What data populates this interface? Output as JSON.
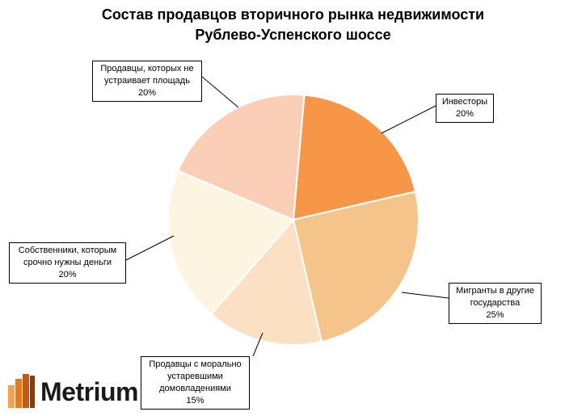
{
  "title_line1": "Состав продавцов вторичного рынка недвижимости",
  "title_line2": "Рублево-Успенского шоссе",
  "logo": {
    "text": "Metrium"
  },
  "chart_data": {
    "type": "pie",
    "title": "Состав продавцов вторичного рынка недвижимости Рублево-Успенского шоссе",
    "slices": [
      {
        "name": "Инвесторы",
        "value": 20,
        "label": "20%",
        "color": "#f79646",
        "lines": [
          "Инвесторы"
        ]
      },
      {
        "name": "Мигранты в другие государства",
        "value": 25,
        "label": "25%",
        "color": "#f5c48b",
        "lines": [
          "Мигранты в другие",
          "государства"
        ]
      },
      {
        "name": "Продавцы с морально устаревшими домовладениями",
        "value": 15,
        "label": "15%",
        "color": "#fbe0c3",
        "lines": [
          "Продавцы с морально",
          "устаревшими",
          "домовладениями"
        ]
      },
      {
        "name": "Собственники, которым срочно нужны деньги",
        "value": 20,
        "label": "20%",
        "color": "#fdf5e1",
        "lines": [
          "Собственники, которым",
          "срочно нужны деньги"
        ]
      },
      {
        "name": "Продавцы, которых не устраивает площадь",
        "value": 20,
        "label": "20%",
        "color": "#fbcfb7",
        "lines": [
          "Продавцы, которых не",
          "устраивает площадь"
        ]
      }
    ]
  }
}
